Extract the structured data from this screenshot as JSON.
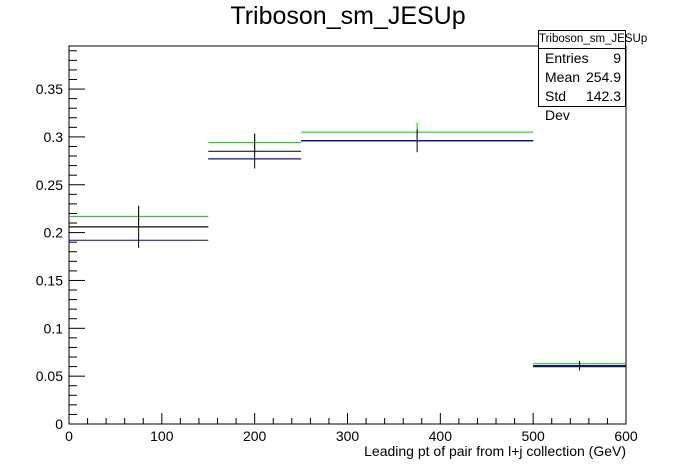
{
  "chart_data": {
    "type": "histogram",
    "title": "Triboson_sm_JESUp",
    "xlabel": "Leading pt of pair from l+j collection (GeV)",
    "ylabel": "",
    "xlim": [
      0,
      600
    ],
    "ylim": [
      0,
      0.395
    ],
    "x_ticks": [
      0,
      100,
      200,
      300,
      400,
      500,
      600
    ],
    "y_ticks": [
      0,
      0.05,
      0.1,
      0.15,
      0.2,
      0.25,
      0.3,
      0.35
    ],
    "bin_edges": [
      0,
      150,
      250,
      500,
      600
    ],
    "series": [
      {
        "color": "#00cc00",
        "values": [
          0.217,
          0.294,
          0.305,
          0.063
        ],
        "errors": [
          0.01,
          0.01,
          0.01,
          0.003
        ]
      },
      {
        "color": "#000000",
        "values": [
          0.206,
          0.285,
          0.296,
          0.061
        ],
        "errors": [
          0.022,
          0.018,
          0.012,
          0.005
        ]
      },
      {
        "color": "#000000",
        "values": [
          0.206,
          0.277,
          0.296,
          0.06
        ],
        "errors": [
          0,
          0,
          0,
          0
        ]
      },
      {
        "color": "#0000cc",
        "values": [
          0.192,
          0.277,
          0.296,
          0.06
        ],
        "errors": [
          0,
          0,
          0,
          0
        ]
      }
    ],
    "stats_box": {
      "title": "Triboson_sm_JESUp",
      "entries_label": "Entries",
      "entries": "9",
      "mean_label": "Mean",
      "mean": "254.9",
      "stddev_label": "Std Dev",
      "stddev": "142.3"
    }
  }
}
